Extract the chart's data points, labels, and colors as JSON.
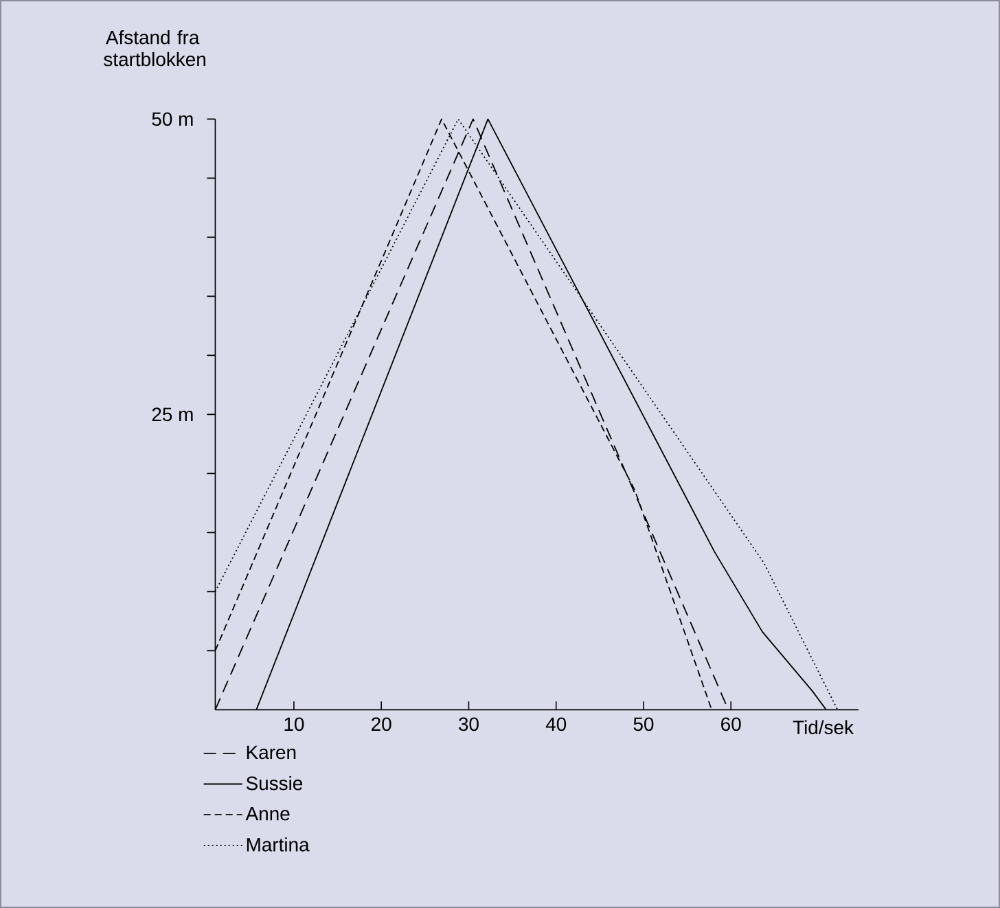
{
  "chart_data": {
    "type": "line",
    "ylabel": "Afstand fra startblokken",
    "xlabel": "Tid/sek",
    "xlim": [
      1,
      74.6
    ],
    "ylim": [
      0,
      50
    ],
    "xticks": [
      10,
      20,
      30,
      40,
      50,
      60
    ],
    "yticks": [
      {
        "value": 5,
        "label": null
      },
      {
        "value": 10,
        "label": null
      },
      {
        "value": 15,
        "label": null
      },
      {
        "value": 20,
        "label": null
      },
      {
        "value": 25,
        "label": "25 m"
      },
      {
        "value": 30,
        "label": null
      },
      {
        "value": 35,
        "label": null
      },
      {
        "value": 40,
        "label": null
      },
      {
        "value": 45,
        "label": null
      },
      {
        "value": 50,
        "label": "50 m"
      }
    ],
    "legend": "bottom left",
    "grid": false,
    "series": [
      {
        "name": "Karen",
        "color": "#000000",
        "line_style": "dashed",
        "x": [
          1,
          30.5,
          59.7
        ],
        "values": [
          0,
          50,
          0
        ]
      },
      {
        "name": "Sussie",
        "color": "#000000",
        "line_style": "solid",
        "x": [
          5.7,
          32.2,
          58.1,
          63.6,
          69.3,
          70.9
        ],
        "values": [
          0,
          50,
          13.4,
          6.6,
          1.6,
          0
        ]
      },
      {
        "name": "Anne",
        "color": "#000000",
        "line_style": "dashed",
        "x": [
          1,
          26.9,
          49,
          57.8
        ],
        "values": [
          5,
          50,
          18.6,
          0
        ]
      },
      {
        "name": "Martina",
        "color": "#000000",
        "line_style": "dotted",
        "x": [
          1,
          28.8,
          63.8,
          72.2
        ],
        "values": [
          10,
          50,
          12.4,
          0
        ]
      }
    ]
  }
}
